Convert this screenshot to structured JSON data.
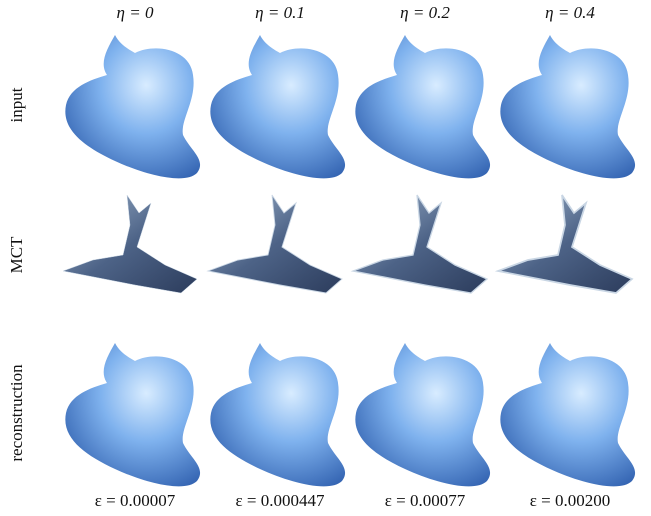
{
  "columns": [
    "η = 0",
    "η = 0.1",
    "η = 0.2",
    "η = 0.4"
  ],
  "rows": [
    "input",
    "MCT",
    "reconstruction"
  ],
  "captions": [
    "ε = 0.00007",
    "ε = 0.000447",
    "ε = 0.00077",
    "ε = 0.00200"
  ]
}
